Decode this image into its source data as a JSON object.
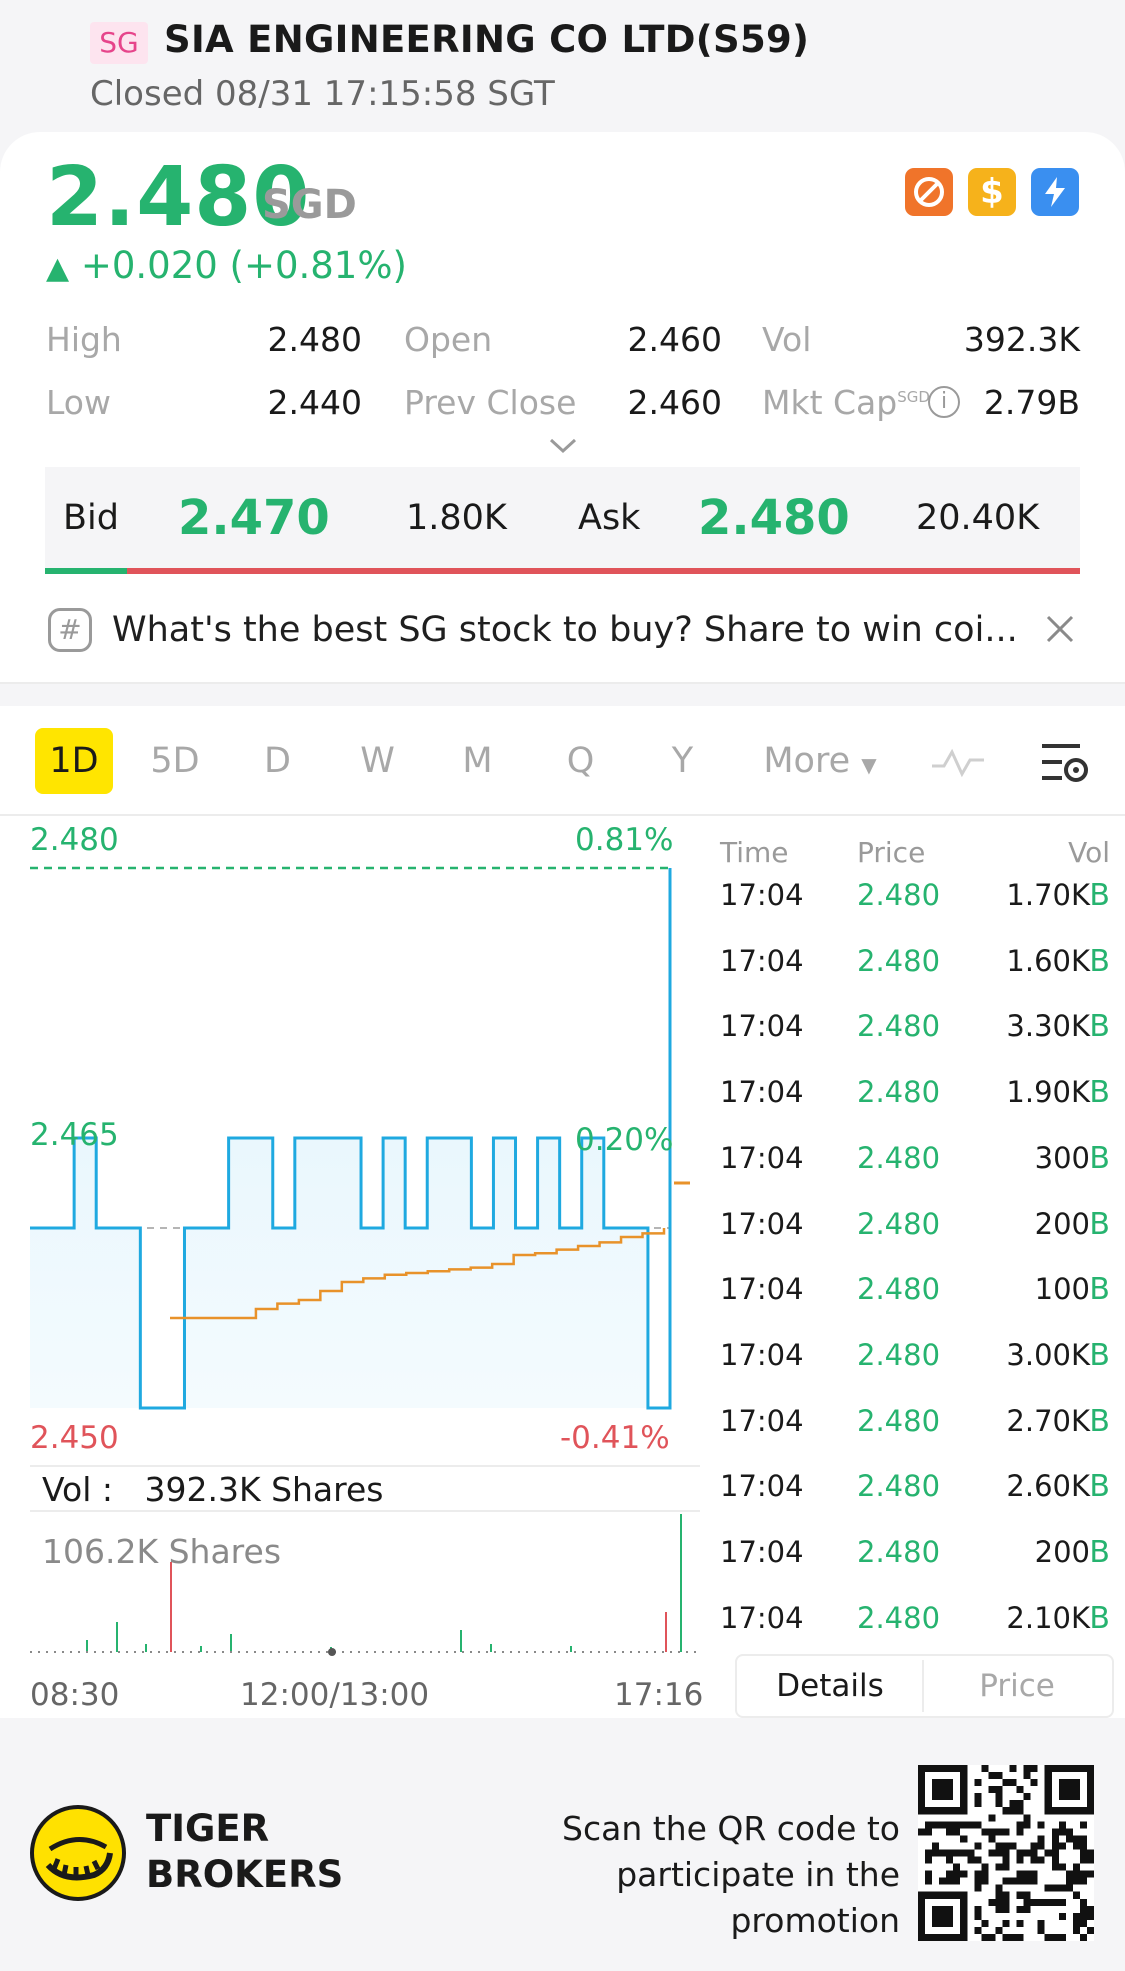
{
  "header": {
    "market_tag": "SG",
    "title": "SIA ENGINEERING CO LTD(S59)",
    "status": "Closed 08/31 17:15:58 SGT"
  },
  "quote": {
    "price": "2.480",
    "currency": "SGD",
    "change": "+0.020 (+0.81%)",
    "badges": [
      "no-entry-icon",
      "dollar-icon",
      "lightning-icon"
    ]
  },
  "stats": {
    "high_label": "High",
    "high": "2.480",
    "low_label": "Low",
    "low": "2.440",
    "open_label": "Open",
    "open": "2.460",
    "prev_close_label": "Prev Close",
    "prev_close": "2.460",
    "vol_label": "Vol",
    "vol": "392.3K",
    "mktcap_label": "Mkt Cap",
    "mktcap_currency": "SGD",
    "mktcap": "2.79B"
  },
  "order_book": {
    "bid_label": "Bid",
    "bid": "2.470",
    "bid_size": "1.80K",
    "ask_label": "Ask",
    "ask": "2.480",
    "ask_size": "20.40K",
    "bid_fraction": 0.08
  },
  "promo": {
    "text": "What's the best SG stock to buy? Share to win coi..."
  },
  "periods": [
    "1D",
    "5D",
    "D",
    "W",
    "M",
    "Q",
    "Y"
  ],
  "more_label": "More",
  "chart_labels": {
    "top_price": "2.480",
    "top_pct": "0.81%",
    "mid_price": "2.465",
    "mid_pct": "0.20%",
    "bot_price": "2.450",
    "bot_pct": "-0.41%",
    "vol_label": "Vol :",
    "vol_value": "392.3K Shares",
    "vol_max": "106.2K Shares",
    "time_start": "08:30",
    "time_mid": "12:00/13:00",
    "time_end": "17:16"
  },
  "chart_data": {
    "type": "line",
    "ylim": [
      2.45,
      2.48
    ],
    "prev_close": 2.46,
    "series": [
      {
        "values": [
          2.46,
          2.46,
          2.465,
          2.46,
          2.46,
          2.45,
          2.45,
          2.46,
          2.46,
          2.465,
          2.465,
          2.46,
          2.465,
          2.465,
          2.465,
          2.46,
          2.465,
          2.46,
          2.465,
          2.465,
          2.46,
          2.465,
          2.46,
          2.465,
          2.46,
          2.465,
          2.46,
          2.46,
          2.45,
          2.48
        ]
      },
      {
        "values": [
          2.455,
          2.455,
          2.455,
          2.455,
          2.4555,
          2.4558,
          2.456,
          2.4565,
          2.457,
          2.4572,
          2.4574,
          2.4575,
          2.4576,
          2.4577,
          2.4578,
          2.458,
          2.4585,
          2.4586,
          2.4588,
          2.459,
          2.4592,
          2.4595,
          2.4597,
          2.46
        ]
      }
    ]
  },
  "trade_headers": {
    "time": "Time",
    "price": "Price",
    "vol": "Vol"
  },
  "trades": [
    {
      "time": "17:04",
      "price": "2.480",
      "vol": "1.70K",
      "side": "B"
    },
    {
      "time": "17:04",
      "price": "2.480",
      "vol": "1.60K",
      "side": "B"
    },
    {
      "time": "17:04",
      "price": "2.480",
      "vol": "3.30K",
      "side": "B"
    },
    {
      "time": "17:04",
      "price": "2.480",
      "vol": "1.90K",
      "side": "B"
    },
    {
      "time": "17:04",
      "price": "2.480",
      "vol": "300",
      "side": "B"
    },
    {
      "time": "17:04",
      "price": "2.480",
      "vol": "200",
      "side": "B"
    },
    {
      "time": "17:04",
      "price": "2.480",
      "vol": "100",
      "side": "B"
    },
    {
      "time": "17:04",
      "price": "2.480",
      "vol": "3.00K",
      "side": "B"
    },
    {
      "time": "17:04",
      "price": "2.480",
      "vol": "2.70K",
      "side": "B"
    },
    {
      "time": "17:04",
      "price": "2.480",
      "vol": "2.60K",
      "side": "B"
    },
    {
      "time": "17:04",
      "price": "2.480",
      "vol": "200",
      "side": "B"
    },
    {
      "time": "17:04",
      "price": "2.480",
      "vol": "2.10K",
      "side": "B"
    }
  ],
  "tabs": {
    "details": "Details",
    "price": "Price"
  },
  "footer": {
    "brand_line1": "TIGER",
    "brand_line2": "BROKERS",
    "scan_line1": "Scan the QR code to",
    "scan_line2": "participate in the promotion"
  },
  "colors": {
    "up": "#26b36f",
    "down": "#e0545a",
    "line": "#1fa9e0",
    "avg": "#e8922a",
    "accent": "#ffe500"
  }
}
